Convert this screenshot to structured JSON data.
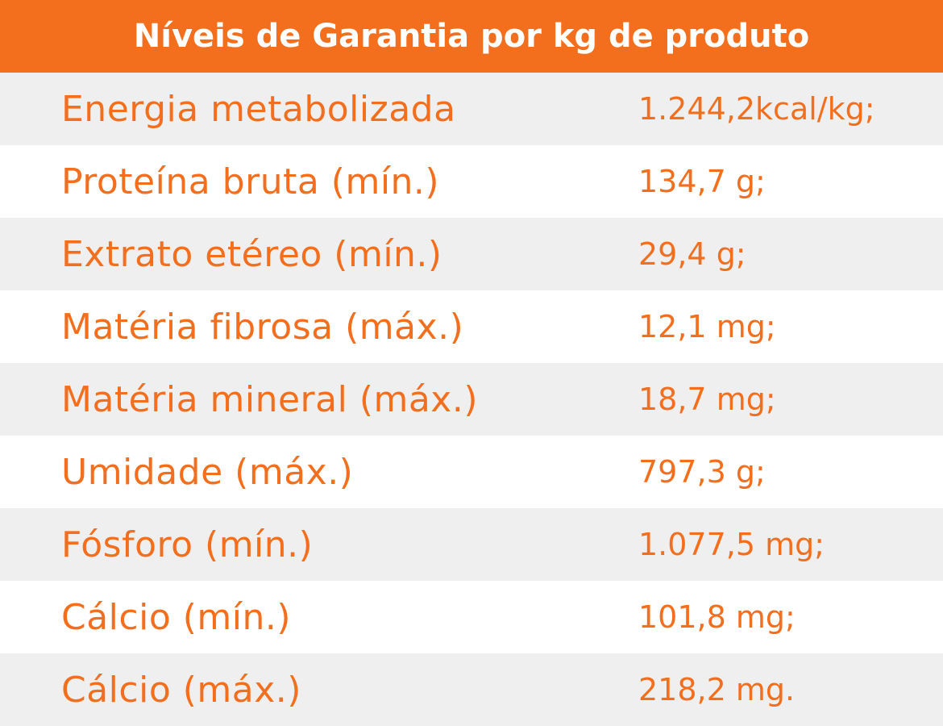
{
  "header": {
    "title": "Níveis de Garantia por kg de produto"
  },
  "table": {
    "rows": [
      [
        "Energia metabolizada",
        "1.244,2kcal/kg;"
      ],
      [
        "Proteína bruta (mín.)",
        "134,7 g;"
      ],
      [
        "Extrato etéreo (mín.)",
        "29,4 g;"
      ],
      [
        "Matéria fibrosa (máx.)",
        "12,1 mg;"
      ],
      [
        "Matéria mineral (máx.)",
        "18,7 mg;"
      ],
      [
        "Umidade (máx.)",
        "797,3 g;"
      ],
      [
        "Fósforo (mín.)",
        "1.077,5 mg;"
      ],
      [
        "Cálcio (mín.)",
        "101,8 mg;"
      ],
      [
        "Cálcio (máx.)",
        "218,2 mg."
      ]
    ]
  }
}
